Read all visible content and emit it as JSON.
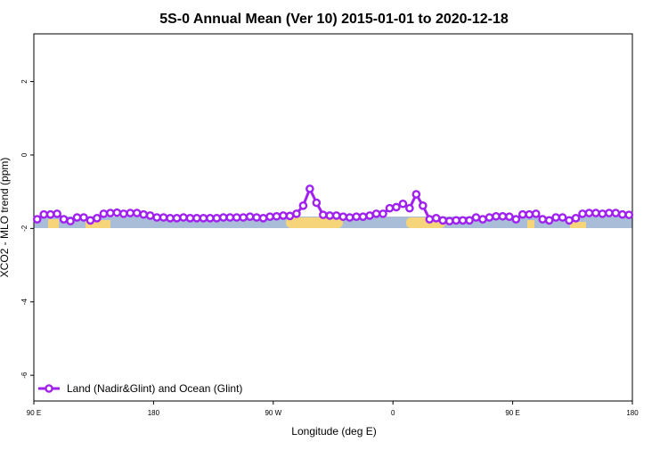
{
  "chart_data": {
    "type": "line",
    "title": "5S-0 Annual Mean (Ver 10)   2015-01-01 to 2020-12-18",
    "xlabel": "Longitude (deg E)",
    "ylabel": "XCO2 - MLO trend (ppm)",
    "xlim": [
      90,
      540
    ],
    "ylim": [
      -6.7,
      3.3
    ],
    "xticks": [
      {
        "value": 90,
        "label": "90 E"
      },
      180,
      {
        "value": 270,
        "label": "90 W"
      },
      {
        "value": 360,
        "label": "0"
      },
      {
        "value": 450,
        "label": "90 E"
      },
      {
        "value": 540,
        "label": "180"
      }
    ],
    "yticks": [
      -6,
      -4,
      -2,
      0,
      2
    ],
    "legend": "bottom-left",
    "x": [
      92.5,
      97.5,
      102.5,
      107.5,
      112.5,
      117.5,
      122.5,
      127.5,
      132.5,
      137.5,
      142.5,
      147.5,
      152.5,
      157.5,
      162.5,
      167.5,
      172.5,
      177.5,
      182.5,
      187.5,
      192.5,
      197.5,
      202.5,
      207.5,
      212.5,
      217.5,
      222.5,
      227.5,
      232.5,
      237.5,
      242.5,
      247.5,
      252.5,
      257.5,
      262.5,
      267.5,
      272.5,
      277.5,
      282.5,
      287.5,
      292.5,
      297.5,
      302.5,
      307.5,
      312.5,
      317.5,
      322.5,
      327.5,
      332.5,
      337.5,
      342.5,
      347.5,
      352.5,
      357.5,
      362.5,
      367.5,
      372.5,
      377.5,
      382.5,
      387.5,
      392.5,
      397.5,
      402.5,
      407.5,
      412.5,
      417.5,
      422.5,
      427.5,
      432.5,
      437.5,
      442.5,
      447.5,
      452.5,
      457.5,
      462.5,
      467.5,
      472.5,
      477.5,
      482.5,
      487.5,
      492.5,
      497.5,
      502.5,
      507.5,
      512.5,
      517.5,
      522.5,
      527.5,
      532.5,
      537.5
    ],
    "series": [
      {
        "name": "Land (Nadir&Glint) and Ocean (Glint)",
        "color": "#a020f0",
        "values": [
          -1.75,
          -1.62,
          -1.62,
          -1.6,
          -1.75,
          -1.8,
          -1.7,
          -1.7,
          -1.78,
          -1.72,
          -1.6,
          -1.58,
          -1.57,
          -1.6,
          -1.58,
          -1.58,
          -1.62,
          -1.65,
          -1.7,
          -1.7,
          -1.72,
          -1.72,
          -1.7,
          -1.72,
          -1.72,
          -1.72,
          -1.72,
          -1.72,
          -1.7,
          -1.7,
          -1.7,
          -1.7,
          -1.68,
          -1.7,
          -1.72,
          -1.68,
          -1.67,
          -1.65,
          -1.66,
          -1.6,
          -1.38,
          -0.92,
          -1.3,
          -1.63,
          -1.65,
          -1.65,
          -1.68,
          -1.7,
          -1.68,
          -1.68,
          -1.65,
          -1.6,
          -1.6,
          -1.45,
          -1.42,
          -1.33,
          -1.45,
          -1.07,
          -1.38,
          -1.75,
          -1.72,
          -1.78,
          -1.8,
          -1.78,
          -1.78,
          -1.78,
          -1.7,
          -1.75,
          -1.7,
          -1.67,
          -1.67,
          -1.68,
          -1.75,
          -1.62,
          -1.62,
          -1.6,
          -1.75,
          -1.78,
          -1.7,
          -1.7,
          -1.78,
          -1.72,
          -1.6,
          -1.58,
          -1.58,
          -1.6,
          -1.58,
          -1.58,
          -1.62,
          -1.63
        ]
      }
    ]
  }
}
